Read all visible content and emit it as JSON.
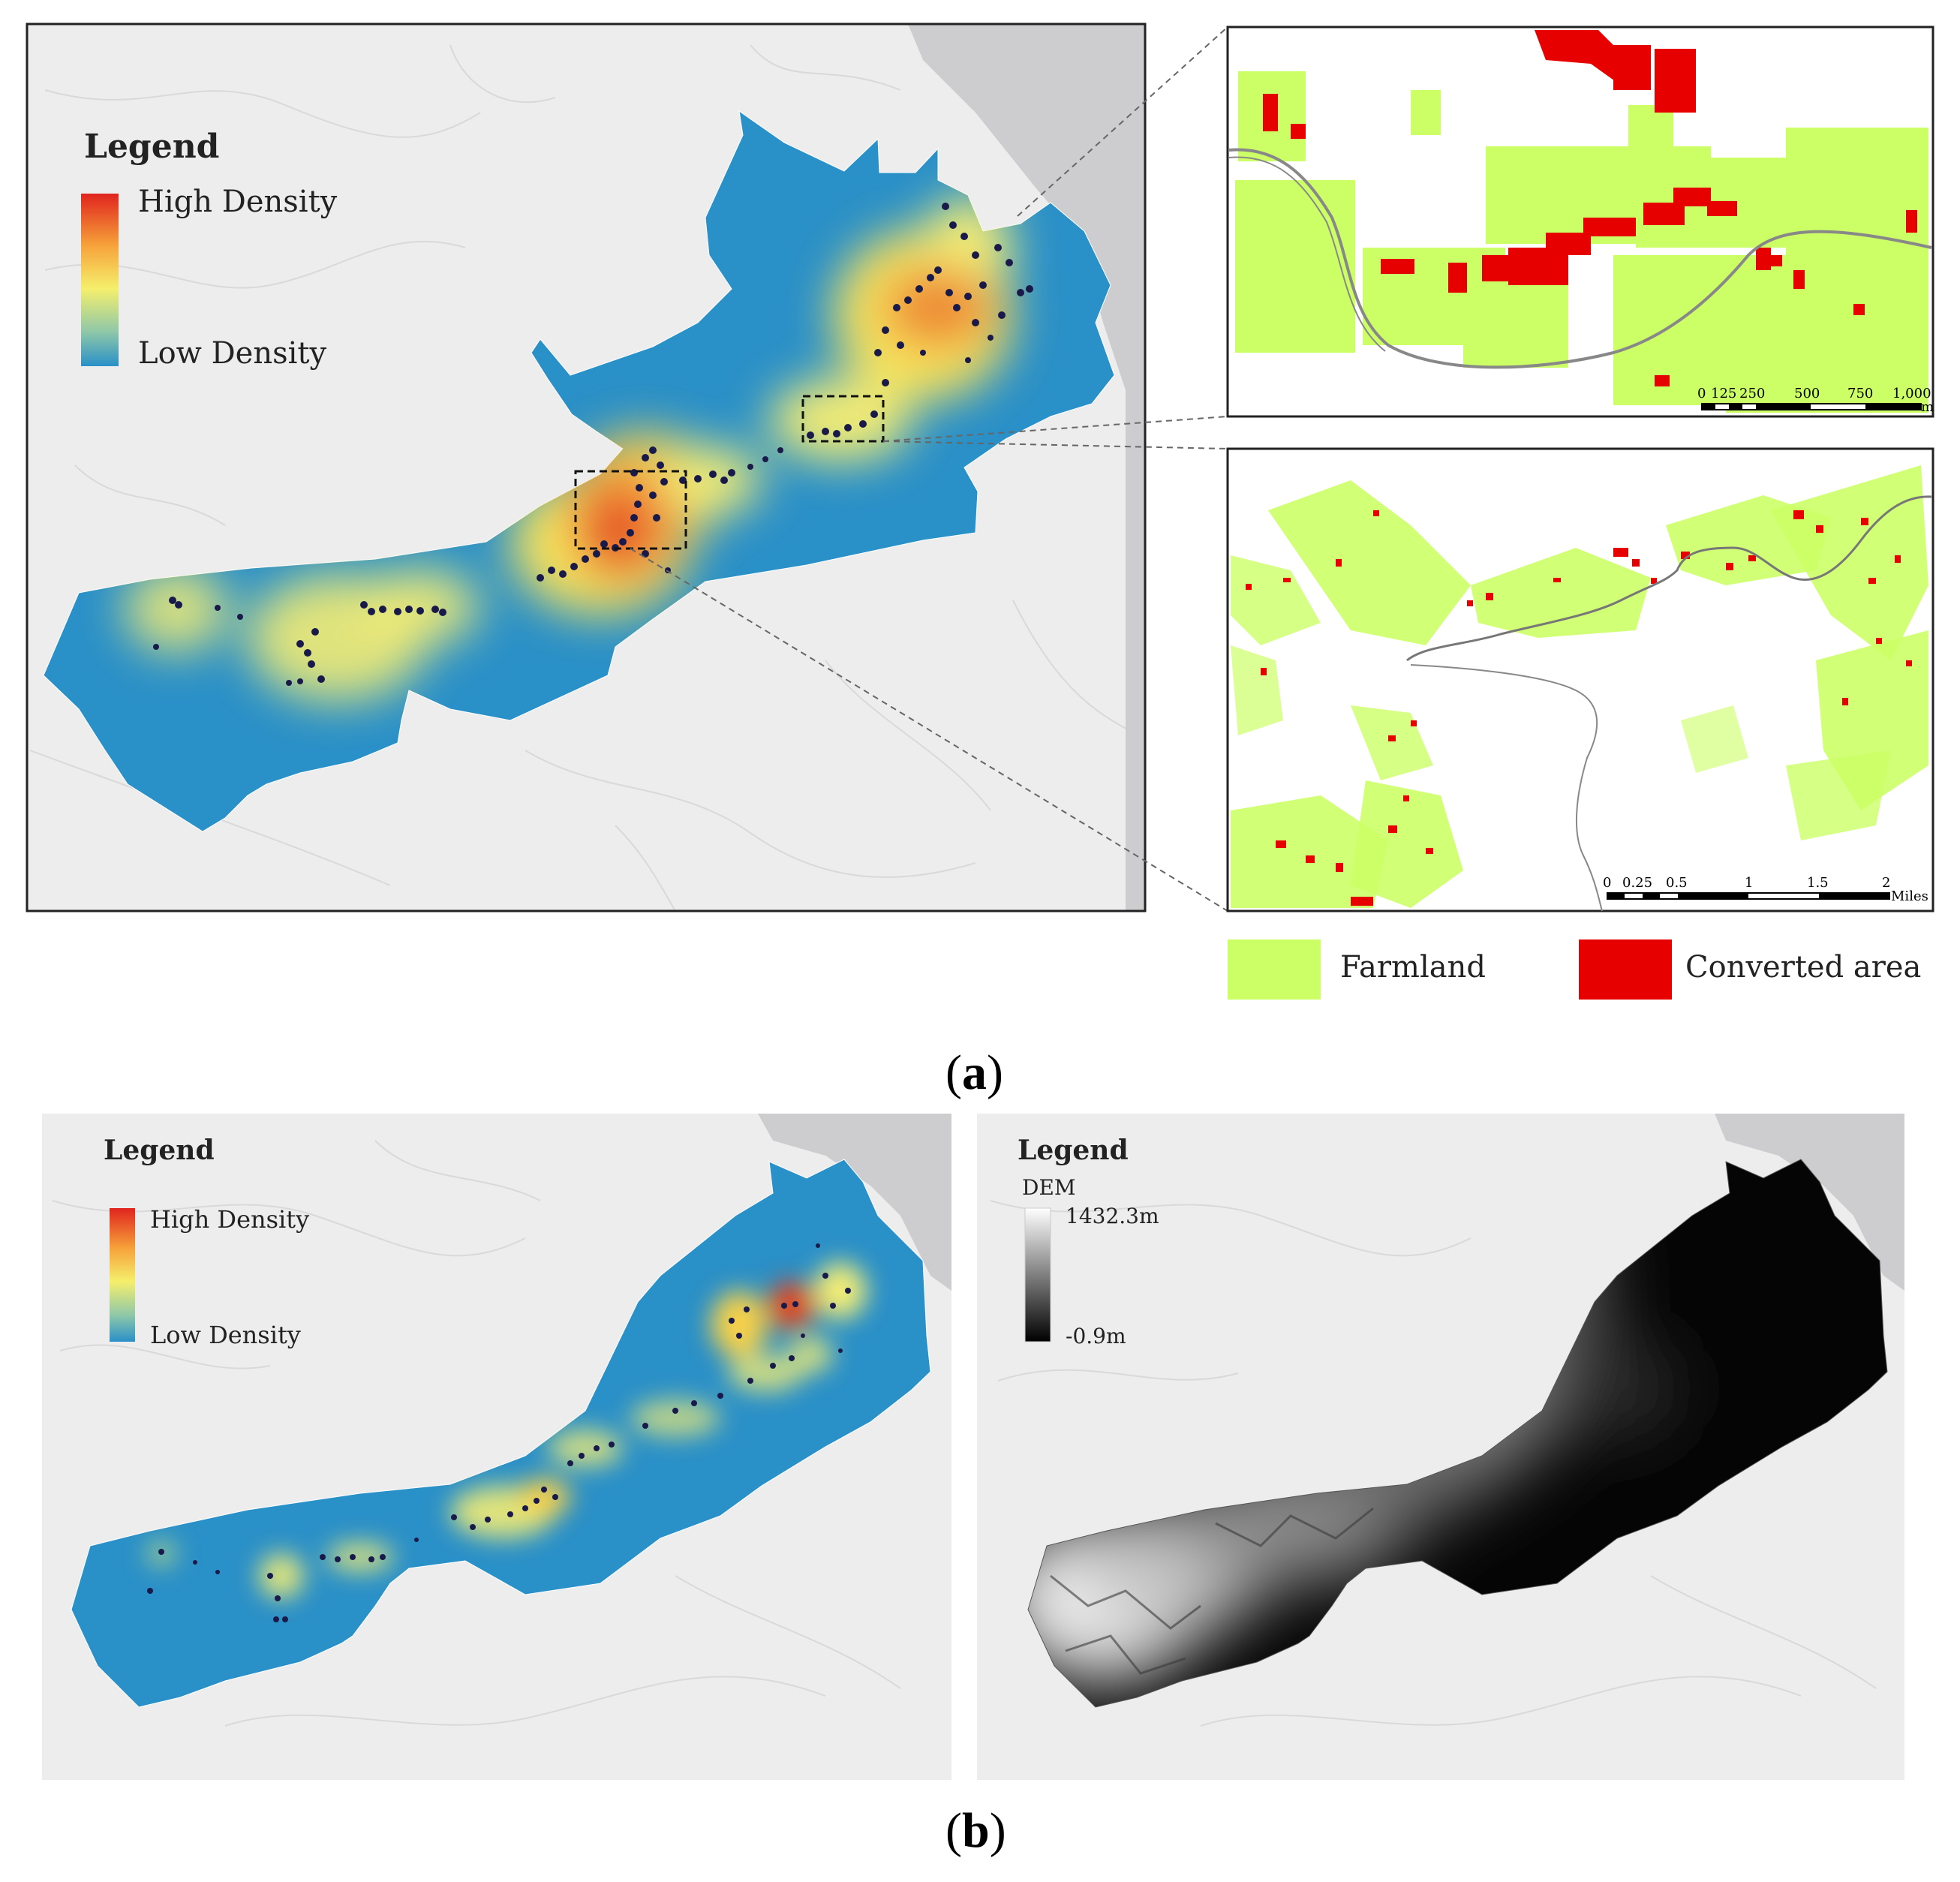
{
  "panel_a": {
    "caption_open": "(",
    "caption_letter": "a",
    "caption_close": ")",
    "legend": {
      "title": "Legend",
      "high": "High Density",
      "low": "Low Density"
    },
    "inset_top": {
      "scale_labels": [
        "0",
        "125",
        "250",
        "500",
        "750",
        "1,000"
      ],
      "unit": "m"
    },
    "inset_bottom": {
      "scale_labels": [
        "0",
        "0.25",
        "0.5",
        "1",
        "1.5",
        "2"
      ],
      "unit": "Miles"
    },
    "inset_legend": {
      "farmland": "Farmland",
      "converted": "Converted area"
    }
  },
  "panel_b": {
    "caption_open": "(",
    "caption_letter": "b",
    "caption_close": ")",
    "legend_left": {
      "title": "Legend",
      "high": "High Density",
      "low": "Low Density"
    },
    "legend_right": {
      "title": "Legend",
      "layer": "DEM",
      "max": "1432.3m",
      "min": "-0.9m"
    }
  },
  "colors": {
    "watershed": "#2a90c8",
    "heat_high": "#e8501e",
    "heat_mid": "#f6ec5a",
    "farmland": "#ccff66",
    "converted": "#e60000",
    "basemap": "#ededed",
    "sea": "#cdcdd0"
  }
}
